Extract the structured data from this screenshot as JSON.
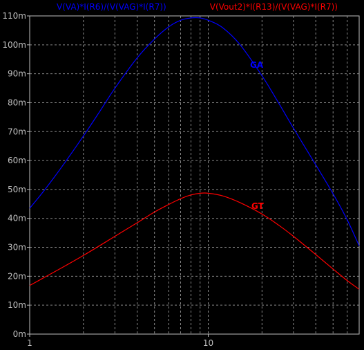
{
  "chart_data": {
    "type": "line",
    "x_scale": "log",
    "xlim": [
      1,
      70
    ],
    "ylim": [
      0,
      0.11
    ],
    "grid": true,
    "x_ticks": [
      {
        "value": 1,
        "label": "1"
      },
      {
        "value": 10,
        "label": "10"
      }
    ],
    "y_ticks": [
      {
        "value": 0,
        "label": "0m"
      },
      {
        "value": 0.01,
        "label": "10m"
      },
      {
        "value": 0.02,
        "label": "20m"
      },
      {
        "value": 0.03,
        "label": "30m"
      },
      {
        "value": 0.04,
        "label": "40m"
      },
      {
        "value": 0.05,
        "label": "50m"
      },
      {
        "value": 0.06,
        "label": "60m"
      },
      {
        "value": 0.07,
        "label": "70m"
      },
      {
        "value": 0.08,
        "label": "80m"
      },
      {
        "value": 0.09,
        "label": "90m"
      },
      {
        "value": 0.1,
        "label": "100m"
      },
      {
        "value": 0.11,
        "label": "110m"
      }
    ],
    "series": [
      {
        "name": "V(VA)*I(R6)/(V(VAG)*I(R7))",
        "annotation": "GA",
        "color": "#0000ff",
        "x": [
          1,
          1.2,
          1.5,
          2,
          2.5,
          3,
          4,
          5,
          6,
          7,
          8,
          9,
          10,
          12,
          15,
          20,
          25,
          30,
          40,
          50,
          60,
          70
        ],
        "y": [
          0.0435,
          0.0495,
          0.0575,
          0.0685,
          0.0775,
          0.085,
          0.0955,
          0.102,
          0.1062,
          0.1085,
          0.1093,
          0.1093,
          0.1085,
          0.106,
          0.1002,
          0.0893,
          0.0795,
          0.0712,
          0.0585,
          0.0485,
          0.0395,
          0.0305
        ]
      },
      {
        "name": "V(Vout2)*I(R13)/(V(VAG)*I(R7))",
        "annotation": "GT",
        "color": "#ff0000",
        "x": [
          1,
          1.2,
          1.5,
          2,
          2.5,
          3,
          4,
          5,
          6,
          7,
          8,
          9,
          10,
          12,
          15,
          20,
          25,
          30,
          40,
          50,
          60,
          70
        ],
        "y": [
          0.0168,
          0.0195,
          0.0228,
          0.0272,
          0.0308,
          0.0338,
          0.0385,
          0.0422,
          0.0448,
          0.0468,
          0.0481,
          0.0487,
          0.0487,
          0.0478,
          0.0455,
          0.0415,
          0.0375,
          0.0338,
          0.0275,
          0.0225,
          0.0185,
          0.0155
        ]
      }
    ]
  }
}
